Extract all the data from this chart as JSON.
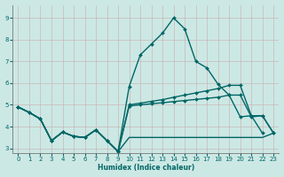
{
  "xlabel": "Humidex (Indice chaleur)",
  "background_color": "#cce8e4",
  "grid_color": "#c8b8b8",
  "line_color": "#006666",
  "xlim": [
    -0.5,
    23.5
  ],
  "ylim": [
    2.8,
    9.6
  ],
  "yticks": [
    3,
    4,
    5,
    6,
    7,
    8,
    9
  ],
  "xticks": [
    0,
    1,
    2,
    3,
    4,
    5,
    6,
    7,
    8,
    9,
    10,
    11,
    12,
    13,
    14,
    15,
    16,
    17,
    18,
    19,
    20,
    21,
    22,
    23
  ],
  "series": [
    {
      "x": [
        0,
        1,
        2,
        3,
        4,
        5,
        6,
        7,
        8,
        9,
        10,
        11,
        12,
        13,
        14,
        15,
        16,
        17,
        18,
        19,
        20,
        21,
        22,
        23
      ],
      "y": [
        4.9,
        4.65,
        4.35,
        3.35,
        3.75,
        3.55,
        3.5,
        3.85,
        3.35,
        2.85,
        3.5,
        3.5,
        3.5,
        3.5,
        3.5,
        3.5,
        3.5,
        3.5,
        3.5,
        3.5,
        3.5,
        3.5,
        3.5,
        3.7
      ],
      "marker": false,
      "markersize": 0,
      "linewidth": 1.0
    },
    {
      "x": [
        0,
        1,
        2,
        3,
        4,
        5,
        6,
        7,
        8,
        9,
        10,
        11,
        12,
        13,
        14,
        15,
        16,
        17,
        18,
        19,
        20,
        21,
        22,
        23
      ],
      "y": [
        4.9,
        4.65,
        4.35,
        3.35,
        3.75,
        3.55,
        3.5,
        3.85,
        3.35,
        2.85,
        4.95,
        5.0,
        5.05,
        5.1,
        5.15,
        5.2,
        5.25,
        5.3,
        5.35,
        5.45,
        5.45,
        4.45,
        4.5,
        3.7
      ],
      "marker": true,
      "markersize": 2.0,
      "linewidth": 1.0
    },
    {
      "x": [
        0,
        1,
        2,
        3,
        4,
        5,
        6,
        7,
        8,
        9,
        10,
        11,
        12,
        13,
        14,
        15,
        16,
        17,
        18,
        19,
        20,
        21,
        22,
        23
      ],
      "y": [
        4.9,
        4.65,
        4.35,
        3.35,
        3.75,
        3.55,
        3.5,
        3.85,
        3.35,
        2.85,
        5.0,
        5.08,
        5.16,
        5.24,
        5.35,
        5.45,
        5.55,
        5.65,
        5.75,
        5.9,
        5.9,
        4.5,
        4.5,
        3.7
      ],
      "marker": true,
      "markersize": 2.0,
      "linewidth": 1.0
    },
    {
      "x": [
        0,
        1,
        2,
        3,
        4,
        5,
        6,
        7,
        8,
        9,
        10,
        11,
        12,
        13,
        14,
        15,
        16,
        17,
        18,
        19,
        20,
        21,
        22
      ],
      "y": [
        4.9,
        4.65,
        4.35,
        3.35,
        3.75,
        3.55,
        3.5,
        3.85,
        3.35,
        2.85,
        5.85,
        7.3,
        7.8,
        8.3,
        9.0,
        8.5,
        7.0,
        6.7,
        5.95,
        5.45,
        4.45,
        4.5,
        3.7
      ],
      "marker": true,
      "markersize": 2.0,
      "linewidth": 1.0
    }
  ]
}
